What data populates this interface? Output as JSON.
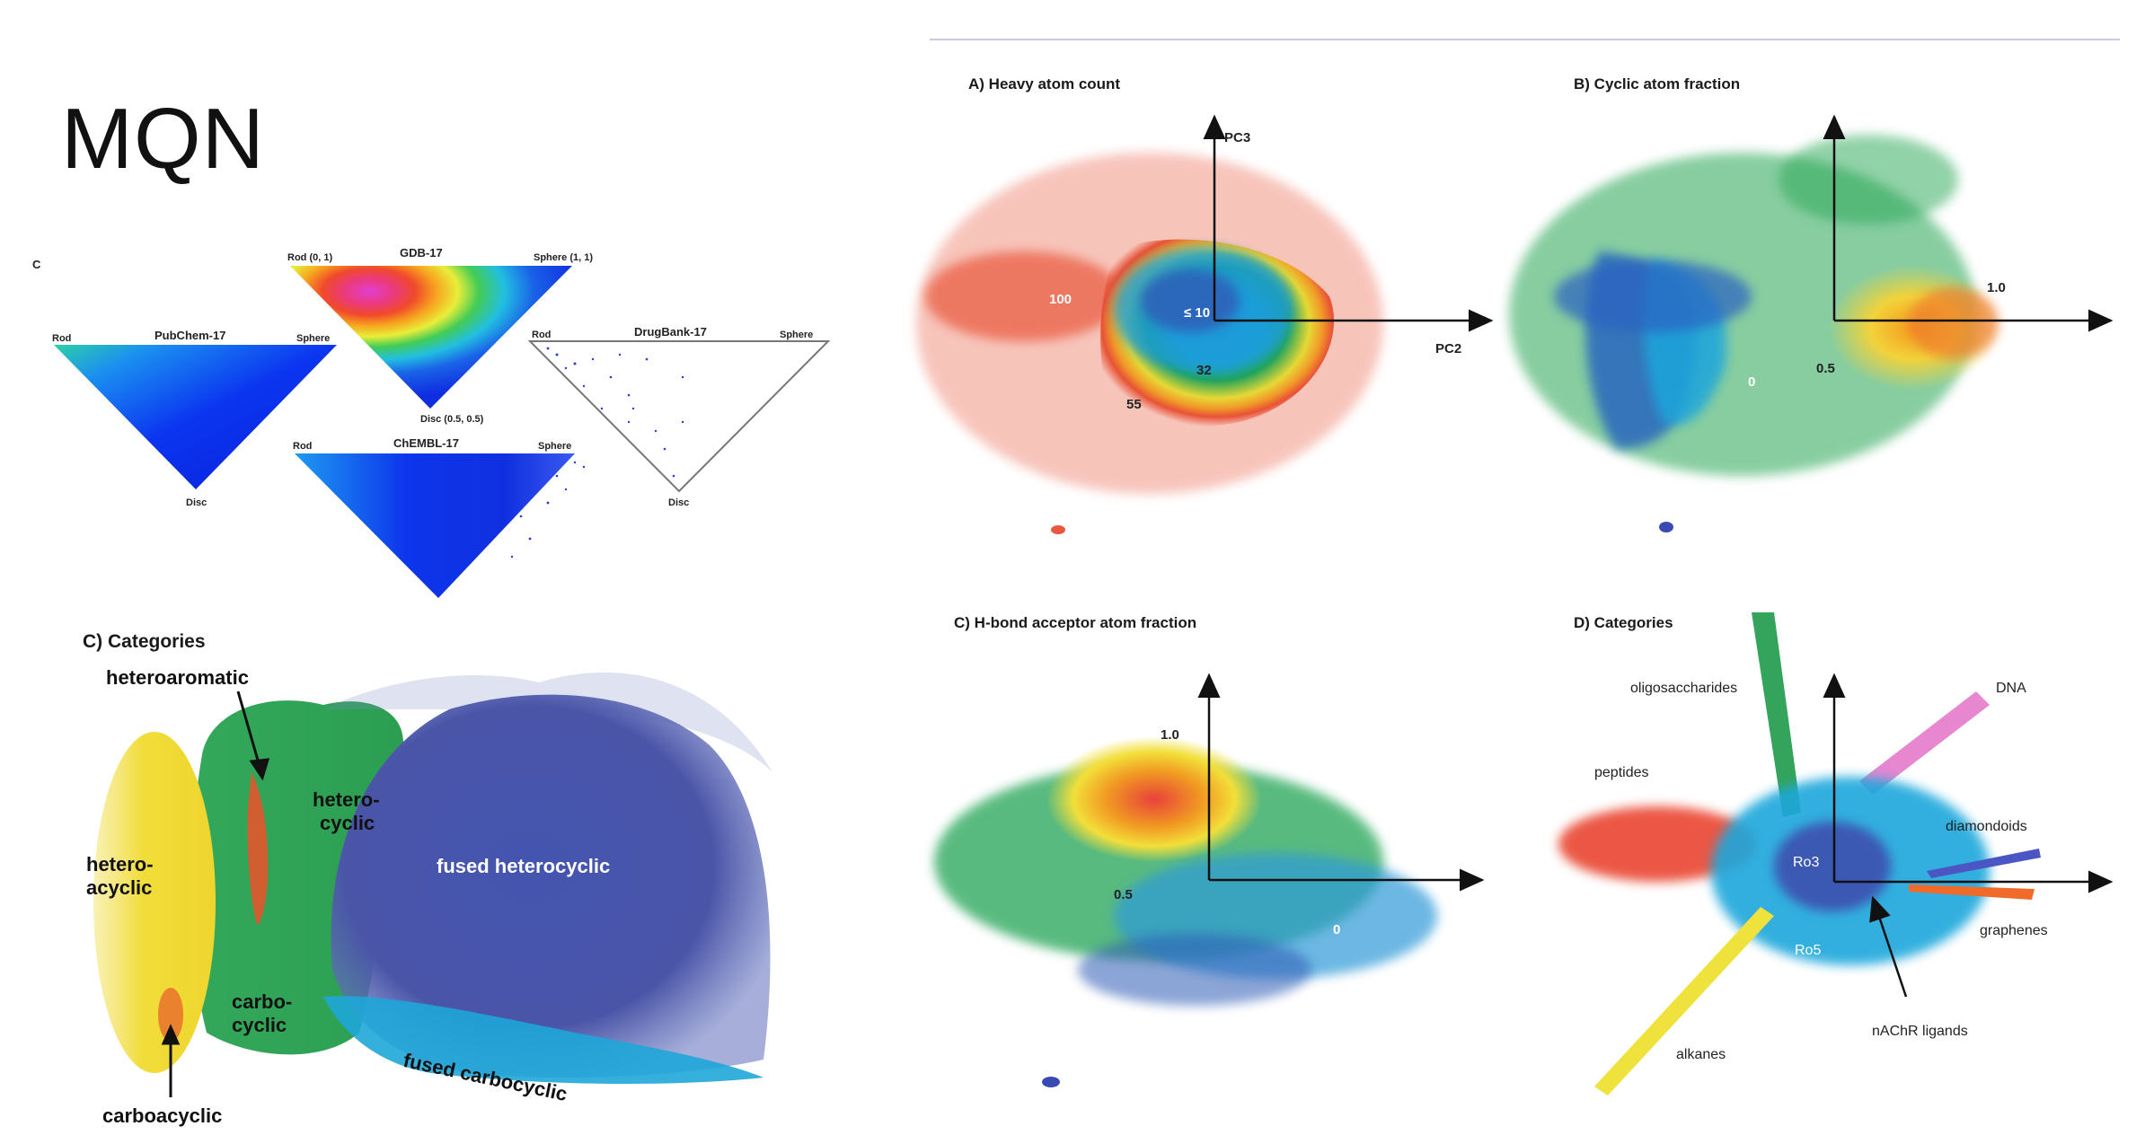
{
  "slide": {
    "title": "MQN"
  },
  "triangles": {
    "panel_letter": "C",
    "gdb": {
      "name": "GDB-17",
      "rod": "Rod (0, 1)",
      "sphere": "Sphere (1, 1)",
      "disc": "Disc (0.5, 0.5)"
    },
    "pubchem": {
      "name": "PubChem-17",
      "rod": "Rod",
      "sphere": "Sphere",
      "disc": "Disc"
    },
    "drugbank": {
      "name": "DrugBank-17",
      "rod": "Rod",
      "sphere": "Sphere",
      "disc": "Disc"
    },
    "chembl": {
      "name": "ChEMBL-17",
      "rod": "Rod",
      "sphere": "Sphere"
    }
  },
  "categories_left": {
    "title": "C) Categories",
    "heteroaromatic": "heteroaromatic",
    "heterocyclic": [
      "hetero-",
      "cyclic"
    ],
    "heteroacyclic": [
      "hetero-",
      "acyclic"
    ],
    "carbocyclic": [
      "carbo-",
      "cyclic"
    ],
    "fused_heterocyclic": "fused heterocyclic",
    "fused_carbocyclic": "fused carbocyclic",
    "carboacyclic": "carboacyclic"
  },
  "panels": {
    "a": {
      "title": "A) Heavy atom count",
      "pc3": "PC3",
      "pc2": "PC2",
      "labels": [
        "100",
        "≤ 10",
        "32",
        "55"
      ]
    },
    "b": {
      "title": "B) Cyclic atom fraction",
      "labels": [
        "1.0",
        "0",
        "0.5"
      ]
    },
    "c": {
      "title": "C) H-bond acceptor atom fraction",
      "labels": [
        "1.0",
        "0.5",
        "0"
      ]
    },
    "d": {
      "title": "D) Categories",
      "labels": {
        "oligosaccharides": "oligosaccharides",
        "dna": "DNA",
        "peptides": "peptides",
        "diamondoids": "diamondoids",
        "ro3": "Ro3",
        "graphenes": "graphenes",
        "ro5": "Ro5",
        "nachr": "nAChR ligands",
        "alkanes": "alkanes"
      }
    }
  },
  "colors": {
    "red": "#e8503a",
    "orange": "#f39a1c",
    "yellow": "#f2e23a",
    "green": "#1e9a4a",
    "cyan": "#1aa3dc",
    "blue": "#2f4fb8",
    "purple": "#4a4aa8",
    "magenta": "#d94fc2"
  }
}
